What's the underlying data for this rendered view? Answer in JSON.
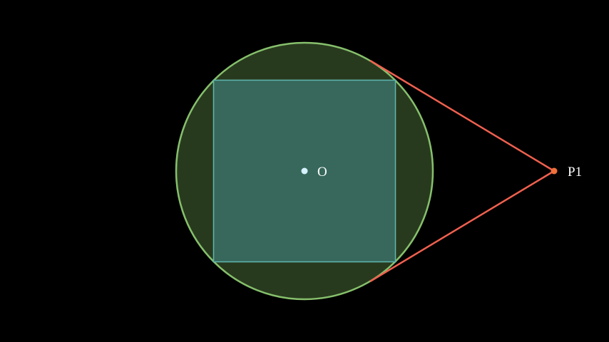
{
  "labels": {
    "center": "O",
    "external_point": "P1"
  },
  "colors": {
    "background": "#000000",
    "circle_stroke": "#86c06c",
    "circle_fill": "#283a1e",
    "square_stroke": "#5fb7b0",
    "square_fill": "#37685b",
    "tangent_lines": "#f0604f",
    "center_point": "#d6f2ff",
    "external_point": "#f0703c",
    "label_text": "#ffffff"
  }
}
